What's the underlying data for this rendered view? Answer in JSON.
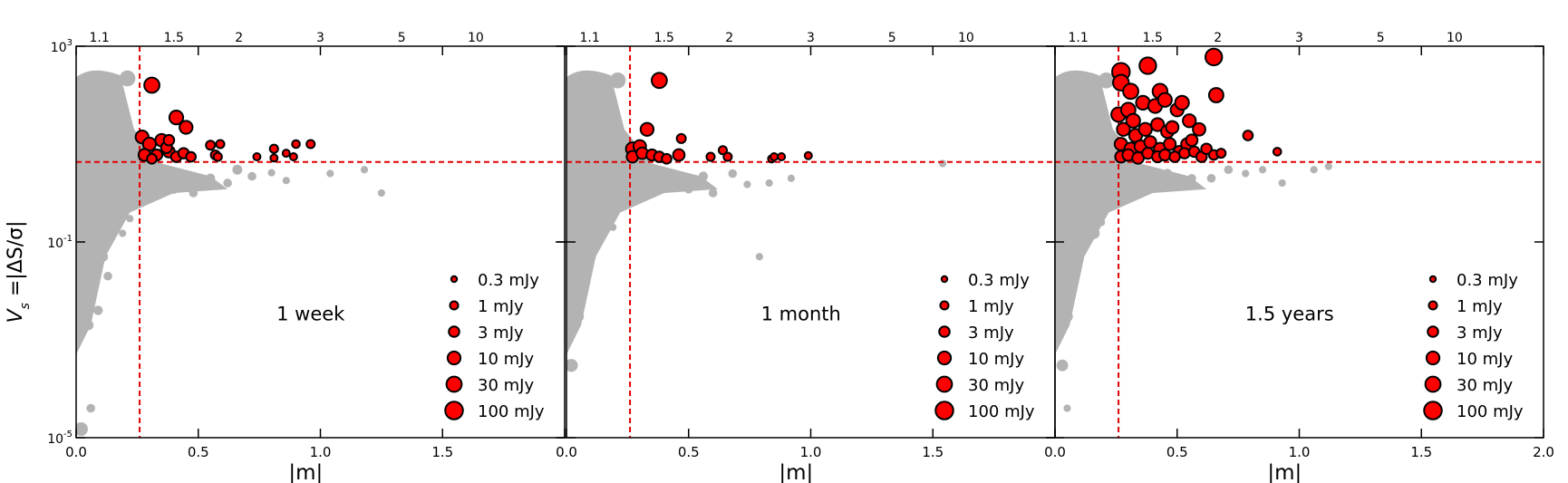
{
  "chart_data": {
    "type": "scatter",
    "layout": "three panels side by side, shared y axis",
    "shared_ylabel": "V_s = |ΔS/σ|",
    "ylabel_parts": {
      "v": "V",
      "s": "s",
      "rest": " =|ΔS/σ|"
    },
    "y_axis": {
      "scale": "log",
      "ylim": [
        1e-05,
        1000
      ],
      "tick_labels": [
        {
          "base": "10",
          "exp": "3",
          "value": 1000
        },
        {
          "base": "10",
          "exp": "-1",
          "value": 0.1
        },
        {
          "base": "10",
          "exp": "-5",
          "value": 1e-05
        }
      ]
    },
    "x_axis": {
      "label": "|m|",
      "xlim": [
        0.0,
        2.0
      ],
      "tick_values": [
        0.0,
        0.5,
        1.0,
        1.5,
        2.0
      ],
      "tick_labels": [
        "0.0",
        "0.5",
        "1.0",
        "1.5",
        "2.0"
      ]
    },
    "top_axis": {
      "description": "modulation ratio",
      "tick_labels": [
        {
          "label": "1.1",
          "m": 0.095
        },
        {
          "label": "1.5",
          "m": 0.4
        },
        {
          "label": "2",
          "m": 0.667
        },
        {
          "label": "3",
          "m": 1.0
        },
        {
          "label": "5",
          "m": 1.333
        },
        {
          "label": "10",
          "m": 1.636
        }
      ]
    },
    "thresholds": {
      "m": 0.26,
      "vs": 4.3,
      "style": "red dashed"
    },
    "colors": {
      "background_points": "#b3b3b3",
      "variable_points": "#ff0000",
      "variable_edge": "#000000",
      "threshold": "#e00000"
    },
    "legend": {
      "placement": "lower-right",
      "entries": [
        {
          "label": "0.3 mJy",
          "flux": 0.3
        },
        {
          "label": "1 mJy",
          "flux": 1
        },
        {
          "label": "3 mJy",
          "flux": 3
        },
        {
          "label": "10 mJy",
          "flux": 10
        },
        {
          "label": "30 mJy",
          "flux": 30
        },
        {
          "label": "100 mJy",
          "flux": 100
        }
      ]
    },
    "panels": [
      {
        "label": "1 week",
        "show_last_xtick": false,
        "background_points": [
          {
            "m": 0.02,
            "vs": 1.5e-05,
            "flux": 30
          },
          {
            "m": 0.03,
            "vs": 0.008,
            "flux": 10
          },
          {
            "m": 0.05,
            "vs": 0.002,
            "flux": 5
          },
          {
            "m": 0.06,
            "vs": 4e-05,
            "flux": 2
          },
          {
            "m": 0.09,
            "vs": 0.004,
            "flux": 3
          },
          {
            "m": 0.04,
            "vs": 0.02,
            "flux": 8
          },
          {
            "m": 0.02,
            "vs": 0.03,
            "flux": 15
          },
          {
            "m": 0.11,
            "vs": 0.05,
            "flux": 4
          },
          {
            "m": 0.12,
            "vs": 0.5,
            "flux": 30
          },
          {
            "m": 0.15,
            "vs": 0.2,
            "flux": 10
          },
          {
            "m": 0.13,
            "vs": 0.02,
            "flux": 2
          },
          {
            "m": 0.21,
            "vs": 220,
            "flux": 100
          },
          {
            "m": 0.3,
            "vs": 3.5,
            "flux": 20
          },
          {
            "m": 0.35,
            "vs": 1.8,
            "flux": 5
          },
          {
            "m": 0.4,
            "vs": 1.2,
            "flux": 3
          },
          {
            "m": 0.48,
            "vs": 1.0,
            "flux": 2
          },
          {
            "m": 0.55,
            "vs": 2.0,
            "flux": 3
          },
          {
            "m": 0.62,
            "vs": 1.6,
            "flux": 2
          },
          {
            "m": 0.66,
            "vs": 3.0,
            "flux": 4
          },
          {
            "m": 0.72,
            "vs": 2.2,
            "flux": 2
          },
          {
            "m": 0.8,
            "vs": 2.6,
            "flux": 1
          },
          {
            "m": 0.86,
            "vs": 1.8,
            "flux": 1
          },
          {
            "m": 1.04,
            "vs": 2.5,
            "flux": 1
          },
          {
            "m": 1.18,
            "vs": 3.0,
            "flux": 1
          },
          {
            "m": 1.25,
            "vs": 1.0,
            "flux": 1
          },
          {
            "m": 0.24,
            "vs": 0.6,
            "flux": 1
          },
          {
            "m": 0.19,
            "vs": 0.15,
            "flux": 1
          },
          {
            "m": 0.22,
            "vs": 0.3,
            "flux": 1
          }
        ],
        "variable_points": [
          {
            "m": 0.31,
            "vs": 160,
            "flux": 30
          },
          {
            "m": 0.27,
            "vs": 14,
            "flux": 10
          },
          {
            "m": 0.3,
            "vs": 10,
            "flux": 10
          },
          {
            "m": 0.35,
            "vs": 12,
            "flux": 8
          },
          {
            "m": 0.38,
            "vs": 7,
            "flux": 5
          },
          {
            "m": 0.41,
            "vs": 35,
            "flux": 15
          },
          {
            "m": 0.45,
            "vs": 22,
            "flux": 10
          },
          {
            "m": 0.28,
            "vs": 6,
            "flux": 6
          },
          {
            "m": 0.33,
            "vs": 6,
            "flux": 4
          },
          {
            "m": 0.37,
            "vs": 8.5,
            "flux": 4
          },
          {
            "m": 0.41,
            "vs": 5.5,
            "flux": 3
          },
          {
            "m": 0.44,
            "vs": 6.5,
            "flux": 3
          },
          {
            "m": 0.47,
            "vs": 5.5,
            "flux": 2
          },
          {
            "m": 0.31,
            "vs": 5.0,
            "flux": 2
          },
          {
            "m": 0.38,
            "vs": 12,
            "flux": 3
          },
          {
            "m": 0.55,
            "vs": 9.5,
            "flux": 1.5
          },
          {
            "m": 0.57,
            "vs": 6.0,
            "flux": 1.5
          },
          {
            "m": 0.59,
            "vs": 10,
            "flux": 1
          },
          {
            "m": 0.58,
            "vs": 5.5,
            "flux": 1
          },
          {
            "m": 0.74,
            "vs": 5.5,
            "flux": 0.6
          },
          {
            "m": 0.81,
            "vs": 8,
            "flux": 1
          },
          {
            "m": 0.81,
            "vs": 5.2,
            "flux": 0.6
          },
          {
            "m": 0.86,
            "vs": 6.5,
            "flux": 0.6
          },
          {
            "m": 0.89,
            "vs": 5.5,
            "flux": 0.6
          },
          {
            "m": 0.9,
            "vs": 10,
            "flux": 0.8
          },
          {
            "m": 0.96,
            "vs": 10,
            "flux": 1
          }
        ]
      },
      {
        "label": "1 month",
        "show_last_xtick": false,
        "background_points": [
          {
            "m": 0.02,
            "vs": 0.0003,
            "flux": 20
          },
          {
            "m": 0.03,
            "vs": 0.002,
            "flux": 10
          },
          {
            "m": 0.05,
            "vs": 0.003,
            "flux": 5
          },
          {
            "m": 0.04,
            "vs": 0.008,
            "flux": 8
          },
          {
            "m": 0.02,
            "vs": 0.02,
            "flux": 15
          },
          {
            "m": 0.1,
            "vs": 0.05,
            "flux": 4
          },
          {
            "m": 0.12,
            "vs": 0.4,
            "flux": 30
          },
          {
            "m": 0.16,
            "vs": 0.2,
            "flux": 10
          },
          {
            "m": 0.21,
            "vs": 200,
            "flux": 100
          },
          {
            "m": 0.29,
            "vs": 3.0,
            "flux": 20
          },
          {
            "m": 0.36,
            "vs": 1.5,
            "flux": 5
          },
          {
            "m": 0.42,
            "vs": 2.0,
            "flux": 3
          },
          {
            "m": 0.5,
            "vs": 1.2,
            "flux": 2
          },
          {
            "m": 0.56,
            "vs": 2.2,
            "flux": 3
          },
          {
            "m": 0.6,
            "vs": 1.0,
            "flux": 2
          },
          {
            "m": 0.68,
            "vs": 2.5,
            "flux": 2
          },
          {
            "m": 0.74,
            "vs": 1.5,
            "flux": 1
          },
          {
            "m": 0.79,
            "vs": 0.05,
            "flux": 1
          },
          {
            "m": 0.83,
            "vs": 1.6,
            "flux": 1
          },
          {
            "m": 0.92,
            "vs": 2.0,
            "flux": 1
          },
          {
            "m": 1.54,
            "vs": 4.0,
            "flux": 1
          },
          {
            "m": 0.25,
            "vs": 0.7,
            "flux": 1
          },
          {
            "m": 0.19,
            "vs": 0.2,
            "flux": 1
          }
        ],
        "variable_points": [
          {
            "m": 0.38,
            "vs": 200,
            "flux": 30
          },
          {
            "m": 0.33,
            "vs": 20,
            "flux": 10
          },
          {
            "m": 0.27,
            "vs": 8,
            "flux": 10
          },
          {
            "m": 0.3,
            "vs": 9,
            "flux": 8
          },
          {
            "m": 0.27,
            "vs": 5.5,
            "flux": 5
          },
          {
            "m": 0.31,
            "vs": 6.5,
            "flux": 5
          },
          {
            "m": 0.35,
            "vs": 6,
            "flux": 4
          },
          {
            "m": 0.38,
            "vs": 5.5,
            "flux": 3
          },
          {
            "m": 0.41,
            "vs": 5.0,
            "flux": 2
          },
          {
            "m": 0.46,
            "vs": 6,
            "flux": 5
          },
          {
            "m": 0.47,
            "vs": 13,
            "flux": 1.5
          },
          {
            "m": 0.59,
            "vs": 5.5,
            "flux": 1
          },
          {
            "m": 0.64,
            "vs": 7.5,
            "flux": 1
          },
          {
            "m": 0.66,
            "vs": 5.5,
            "flux": 1
          },
          {
            "m": 0.84,
            "vs": 5.0,
            "flux": 0.6
          },
          {
            "m": 0.85,
            "vs": 5.5,
            "flux": 0.6
          },
          {
            "m": 0.88,
            "vs": 5.5,
            "flux": 0.6
          },
          {
            "m": 0.99,
            "vs": 5.8,
            "flux": 0.6
          }
        ]
      },
      {
        "label": "1.5 years",
        "show_last_xtick": true,
        "background_points": [
          {
            "m": 0.03,
            "vs": 0.0003,
            "flux": 10
          },
          {
            "m": 0.05,
            "vs": 0.003,
            "flux": 8
          },
          {
            "m": 0.06,
            "vs": 0.02,
            "flux": 12
          },
          {
            "m": 0.04,
            "vs": 0.008,
            "flux": 6
          },
          {
            "m": 0.09,
            "vs": 0.06,
            "flux": 8
          },
          {
            "m": 0.05,
            "vs": 4e-05,
            "flux": 1
          },
          {
            "m": 0.11,
            "vs": 0.4,
            "flux": 20
          },
          {
            "m": 0.16,
            "vs": 0.15,
            "flux": 8
          },
          {
            "m": 0.21,
            "vs": 200,
            "flux": 100
          },
          {
            "m": 0.3,
            "vs": 3.0,
            "flux": 10
          },
          {
            "m": 0.36,
            "vs": 2.0,
            "flux": 5
          },
          {
            "m": 0.46,
            "vs": 2.5,
            "flux": 3
          },
          {
            "m": 0.56,
            "vs": 2.0,
            "flux": 2
          },
          {
            "m": 0.64,
            "vs": 2.0,
            "flux": 2
          },
          {
            "m": 0.71,
            "vs": 3.0,
            "flux": 2
          },
          {
            "m": 0.78,
            "vs": 2.5,
            "flux": 1
          },
          {
            "m": 0.85,
            "vs": 3.0,
            "flux": 1
          },
          {
            "m": 0.93,
            "vs": 1.6,
            "flux": 1
          },
          {
            "m": 1.06,
            "vs": 3.0,
            "flux": 1
          },
          {
            "m": 1.12,
            "vs": 3.5,
            "flux": 1
          },
          {
            "m": 0.24,
            "vs": 0.6,
            "flux": 1
          },
          {
            "m": 0.19,
            "vs": 0.25,
            "flux": 1
          }
        ],
        "variable_points": [
          {
            "m": 0.27,
            "vs": 300,
            "flux": 100
          },
          {
            "m": 0.38,
            "vs": 400,
            "flux": 60
          },
          {
            "m": 0.65,
            "vs": 600,
            "flux": 60
          },
          {
            "m": 0.27,
            "vs": 180,
            "flux": 40
          },
          {
            "m": 0.31,
            "vs": 120,
            "flux": 30
          },
          {
            "m": 0.43,
            "vs": 120,
            "flux": 25
          },
          {
            "m": 0.66,
            "vs": 100,
            "flux": 20
          },
          {
            "m": 0.26,
            "vs": 40,
            "flux": 20
          },
          {
            "m": 0.3,
            "vs": 50,
            "flux": 20
          },
          {
            "m": 0.32,
            "vs": 30,
            "flux": 15
          },
          {
            "m": 0.36,
            "vs": 70,
            "flux": 15
          },
          {
            "m": 0.41,
            "vs": 60,
            "flux": 15
          },
          {
            "m": 0.45,
            "vs": 80,
            "flux": 15
          },
          {
            "m": 0.5,
            "vs": 50,
            "flux": 10
          },
          {
            "m": 0.52,
            "vs": 70,
            "flux": 15
          },
          {
            "m": 0.55,
            "vs": 30,
            "flux": 10
          },
          {
            "m": 0.28,
            "vs": 20,
            "flux": 10
          },
          {
            "m": 0.33,
            "vs": 15,
            "flux": 10
          },
          {
            "m": 0.37,
            "vs": 20,
            "flux": 10
          },
          {
            "m": 0.42,
            "vs": 25,
            "flux": 10
          },
          {
            "m": 0.46,
            "vs": 18,
            "flux": 8
          },
          {
            "m": 0.48,
            "vs": 22,
            "flux": 8
          },
          {
            "m": 0.27,
            "vs": 10,
            "flux": 8
          },
          {
            "m": 0.31,
            "vs": 8,
            "flux": 8
          },
          {
            "m": 0.35,
            "vs": 9,
            "flux": 6
          },
          {
            "m": 0.39,
            "vs": 11,
            "flux": 6
          },
          {
            "m": 0.43,
            "vs": 8,
            "flux": 6
          },
          {
            "m": 0.47,
            "vs": 10,
            "flux": 6
          },
          {
            "m": 0.51,
            "vs": 7,
            "flux": 5
          },
          {
            "m": 0.54,
            "vs": 10,
            "flux": 5
          },
          {
            "m": 0.27,
            "vs": 5.5,
            "flux": 5
          },
          {
            "m": 0.3,
            "vs": 6,
            "flux": 5
          },
          {
            "m": 0.34,
            "vs": 5.2,
            "flux": 5
          },
          {
            "m": 0.38,
            "vs": 6.5,
            "flux": 4
          },
          {
            "m": 0.42,
            "vs": 5.5,
            "flux": 4
          },
          {
            "m": 0.45,
            "vs": 6,
            "flux": 4
          },
          {
            "m": 0.49,
            "vs": 5.5,
            "flux": 3
          },
          {
            "m": 0.53,
            "vs": 6.5,
            "flux": 3
          },
          {
            "m": 0.57,
            "vs": 7,
            "flux": 3
          },
          {
            "m": 0.6,
            "vs": 5.5,
            "flux": 3
          },
          {
            "m": 0.62,
            "vs": 8,
            "flux": 3
          },
          {
            "m": 0.65,
            "vs": 6,
            "flux": 2
          },
          {
            "m": 0.68,
            "vs": 6.5,
            "flux": 1.5
          },
          {
            "m": 0.56,
            "vs": 12,
            "flux": 5
          },
          {
            "m": 0.59,
            "vs": 20,
            "flux": 8
          },
          {
            "m": 0.79,
            "vs": 15,
            "flux": 2
          },
          {
            "m": 0.91,
            "vs": 7,
            "flux": 0.8
          }
        ]
      }
    ]
  }
}
